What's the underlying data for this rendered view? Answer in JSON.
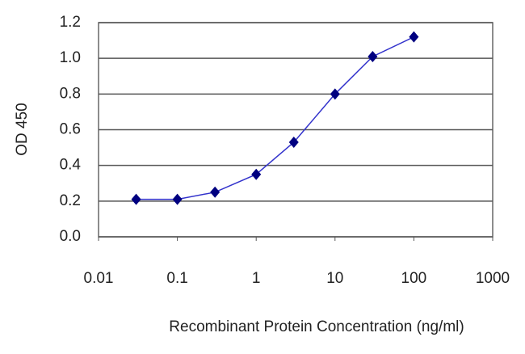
{
  "chart_data": {
    "type": "line",
    "x_label": "Recombinant Protein Concentration (ng/ml)",
    "y_label": "OD 450",
    "x": [
      0.03,
      0.1,
      0.3,
      1,
      3,
      10,
      30,
      100
    ],
    "series": [
      {
        "color": "#3333cc",
        "marker_color": "#000080",
        "values": [
          0.21,
          0.21,
          0.25,
          0.35,
          0.53,
          0.8,
          1.01,
          1.12
        ]
      }
    ],
    "xscale": "log",
    "xlim": [
      0.01,
      1000
    ],
    "xticks": [
      0.01,
      0.1,
      1,
      10,
      100,
      1000
    ],
    "ylim": [
      0,
      1.2
    ],
    "yticks": [
      {
        "value": 0,
        "label": "0.0"
      },
      0.2,
      0.4,
      0.6,
      0.8,
      {
        "value": 1,
        "label": "1.0"
      },
      1.2
    ],
    "grid": true
  }
}
